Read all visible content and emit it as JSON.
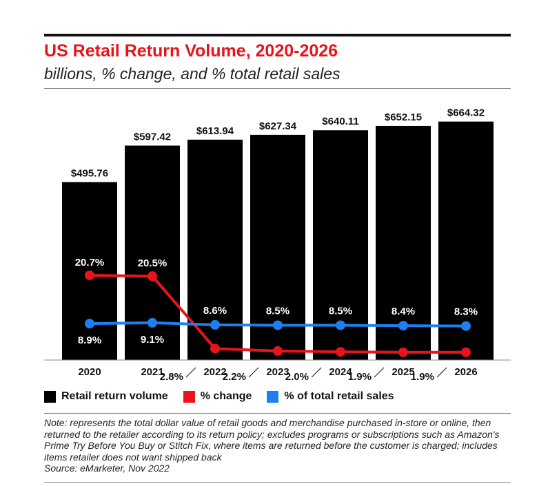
{
  "chart_data": {
    "type": "bar",
    "title": "US Retail Return Volume, 2020-2026",
    "subtitle": "billions, % change, and % total retail sales",
    "categories": [
      "2020",
      "2021",
      "2022",
      "2023",
      "2024",
      "2025",
      "2026"
    ],
    "series": [
      {
        "name": "Retail return volume",
        "type": "bar",
        "color": "#000000",
        "values": [
          495.76,
          597.42,
          613.94,
          627.34,
          640.11,
          652.15,
          664.32
        ],
        "labels": [
          "$495.76",
          "$597.42",
          "$613.94",
          "$627.34",
          "$640.11",
          "$652.15",
          "$664.32"
        ]
      },
      {
        "name": "% change",
        "type": "line",
        "color": "#e8141b",
        "values": [
          20.7,
          20.5,
          2.8,
          2.2,
          2.0,
          1.9,
          1.9
        ],
        "labels": [
          "20.7%",
          "20.5%",
          "2.8%",
          "2.2%",
          "2.0%",
          "1.9%",
          "1.9%"
        ]
      },
      {
        "name": "% of total retail sales",
        "type": "line",
        "color": "#1e7ff0",
        "values": [
          8.9,
          9.1,
          8.6,
          8.5,
          8.5,
          8.4,
          8.3
        ],
        "labels": [
          "8.9%",
          "9.1%",
          "8.6%",
          "8.5%",
          "8.5%",
          "8.4%",
          "8.3%"
        ]
      }
    ],
    "ylim_bars": [
      0,
      700
    ],
    "ylim_pct": [
      0,
      36
    ],
    "legend": "bottom"
  },
  "note": "Note: represents the total dollar value of retail goods and merchandise purchased in-store or online, then returned to the retailer according to its return policy; excludes programs or subscriptions such as Amazon's Prime Try Before You Buy or Stitch Fix, where items are returned before the customer is charged; includes items retailer does not want shipped back",
  "source": "Source: eMarketer, Nov 2022"
}
